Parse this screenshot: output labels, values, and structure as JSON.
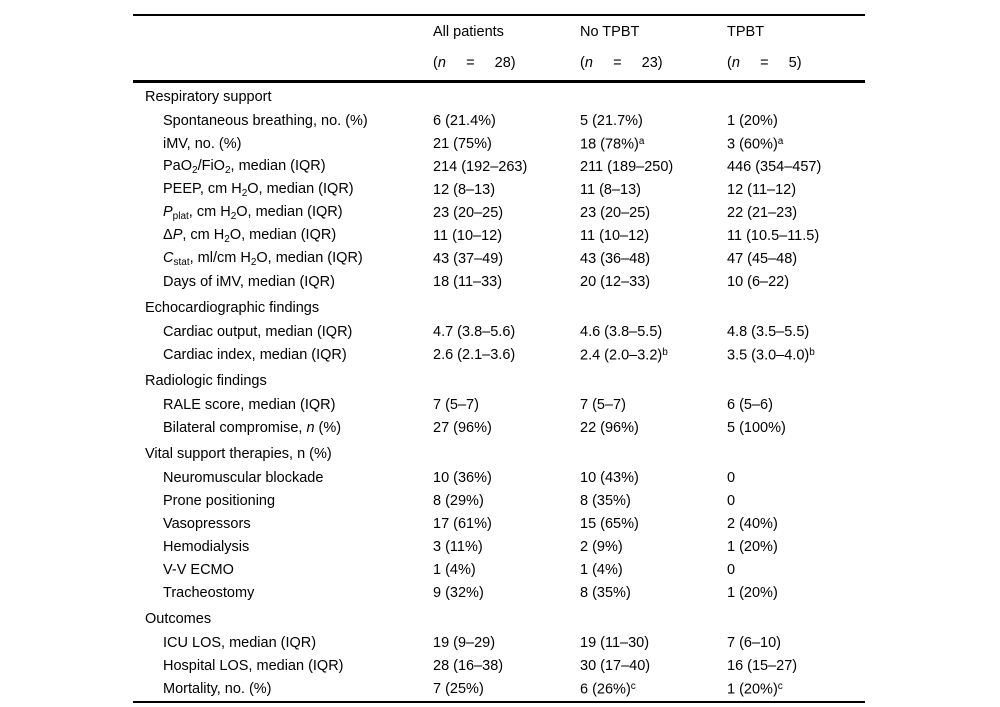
{
  "page": {
    "background": "#ffffff",
    "text_color": "#000000",
    "rule_color": "#000000"
  },
  "table": {
    "header": {
      "columns": [
        {
          "line1": [],
          "line2": []
        },
        {
          "line1": [
            {
              "t": "All patients"
            }
          ],
          "line2": [
            {
              "t": "("
            },
            {
              "t": "n",
              "f": "i"
            },
            {
              "t": "     =     28)"
            }
          ]
        },
        {
          "line1": [
            {
              "t": "No TPBT"
            }
          ],
          "line2": [
            {
              "t": "("
            },
            {
              "t": "n",
              "f": "i"
            },
            {
              "t": "     =     23)"
            }
          ]
        },
        {
          "line1": [
            {
              "t": "TPBT"
            }
          ],
          "line2": [
            {
              "t": "("
            },
            {
              "t": "n",
              "f": "i"
            },
            {
              "t": "     =     5)"
            }
          ]
        }
      ]
    },
    "sections": [
      {
        "title": [
          {
            "t": "Respiratory support"
          }
        ],
        "rows": [
          {
            "label": [
              {
                "t": "Spontaneous breathing, no. (%)"
              }
            ],
            "cells": [
              [
                {
                  "t": "6 (21.4%)"
                }
              ],
              [
                {
                  "t": "5 (21.7%)"
                }
              ],
              [
                {
                  "t": "1 (20%)"
                }
              ]
            ]
          },
          {
            "label": [
              {
                "t": "iMV, no. (%)"
              }
            ],
            "cells": [
              [
                {
                  "t": "21 (75%)"
                }
              ],
              [
                {
                  "t": "18 (78%)"
                },
                {
                  "t": "a",
                  "f": "sup"
                }
              ],
              [
                {
                  "t": "3 (60%)"
                },
                {
                  "t": "a",
                  "f": "sup"
                }
              ]
            ]
          },
          {
            "label": [
              {
                "t": "PaO"
              },
              {
                "t": "2",
                "f": "sub"
              },
              {
                "t": "/FiO"
              },
              {
                "t": "2",
                "f": "sub"
              },
              {
                "t": ", median (IQR)"
              }
            ],
            "cells": [
              [
                {
                  "t": "214 (192–263)"
                }
              ],
              [
                {
                  "t": "211 (189–250)"
                }
              ],
              [
                {
                  "t": "446 (354–457)"
                }
              ]
            ]
          },
          {
            "label": [
              {
                "t": "PEEP, cm H"
              },
              {
                "t": "2",
                "f": "sub"
              },
              {
                "t": "O, median (IQR)"
              }
            ],
            "cells": [
              [
                {
                  "t": "12 (8–13)"
                }
              ],
              [
                {
                  "t": "11 (8–13)"
                }
              ],
              [
                {
                  "t": "12 (11–12)"
                }
              ]
            ]
          },
          {
            "label": [
              {
                "t": "P",
                "f": "i"
              },
              {
                "t": "plat",
                "f": "sub"
              },
              {
                "t": ", cm H"
              },
              {
                "t": "2",
                "f": "sub"
              },
              {
                "t": "O, median (IQR)"
              }
            ],
            "cells": [
              [
                {
                  "t": "23 (20–25)"
                }
              ],
              [
                {
                  "t": "23 (20–25)"
                }
              ],
              [
                {
                  "t": "22 (21–23)"
                }
              ]
            ]
          },
          {
            "label": [
              {
                "t": "Δ"
              },
              {
                "t": "P",
                "f": "i"
              },
              {
                "t": ", cm H"
              },
              {
                "t": "2",
                "f": "sub"
              },
              {
                "t": "O, median (IQR)"
              }
            ],
            "cells": [
              [
                {
                  "t": "11 (10–12)"
                }
              ],
              [
                {
                  "t": "11 (10–12)"
                }
              ],
              [
                {
                  "t": "11 (10.5–11.5)"
                }
              ]
            ]
          },
          {
            "label": [
              {
                "t": "C",
                "f": "i"
              },
              {
                "t": "stat",
                "f": "sub"
              },
              {
                "t": ", ml/cm H"
              },
              {
                "t": "2",
                "f": "sub"
              },
              {
                "t": "O, median (IQR)"
              }
            ],
            "cells": [
              [
                {
                  "t": "43 (37–49)"
                }
              ],
              [
                {
                  "t": "43 (36–48)"
                }
              ],
              [
                {
                  "t": "47 (45–48)"
                }
              ]
            ]
          },
          {
            "label": [
              {
                "t": "Days of iMV, median (IQR)"
              }
            ],
            "cells": [
              [
                {
                  "t": "18 (11–33)"
                }
              ],
              [
                {
                  "t": "20 (12–33)"
                }
              ],
              [
                {
                  "t": "10 (6–22)"
                }
              ]
            ]
          }
        ]
      },
      {
        "title": [
          {
            "t": "Echocardiographic findings"
          }
        ],
        "rows": [
          {
            "label": [
              {
                "t": "Cardiac output, median (IQR)"
              }
            ],
            "cells": [
              [
                {
                  "t": "4.7 (3.8–5.6)"
                }
              ],
              [
                {
                  "t": "4.6 (3.8–5.5)"
                }
              ],
              [
                {
                  "t": "4.8 (3.5–5.5)"
                }
              ]
            ]
          },
          {
            "label": [
              {
                "t": "Cardiac index, median (IQR)"
              }
            ],
            "cells": [
              [
                {
                  "t": "2.6 (2.1–3.6)"
                }
              ],
              [
                {
                  "t": "2.4 (2.0–3.2)"
                },
                {
                  "t": "b",
                  "f": "sup"
                }
              ],
              [
                {
                  "t": "3.5 (3.0–4.0)"
                },
                {
                  "t": "b",
                  "f": "sup"
                }
              ]
            ]
          }
        ]
      },
      {
        "title": [
          {
            "t": "Radiologic findings"
          }
        ],
        "rows": [
          {
            "label": [
              {
                "t": "RALE score, median (IQR)"
              }
            ],
            "cells": [
              [
                {
                  "t": "7 (5–7)"
                }
              ],
              [
                {
                  "t": "7 (5–7)"
                }
              ],
              [
                {
                  "t": "6 (5–6)"
                }
              ]
            ]
          },
          {
            "label": [
              {
                "t": "Bilateral compromise, "
              },
              {
                "t": "n",
                "f": "i"
              },
              {
                "t": " (%)"
              }
            ],
            "cells": [
              [
                {
                  "t": "27 (96%)"
                }
              ],
              [
                {
                  "t": "22 (96%)"
                }
              ],
              [
                {
                  "t": "5 (100%)"
                }
              ]
            ]
          }
        ]
      },
      {
        "title": [
          {
            "t": "Vital support therapies, n (%)"
          }
        ],
        "rows": [
          {
            "label": [
              {
                "t": "Neuromuscular blockade"
              }
            ],
            "cells": [
              [
                {
                  "t": "10 (36%)"
                }
              ],
              [
                {
                  "t": "10 (43%)"
                }
              ],
              [
                {
                  "t": "0"
                }
              ]
            ]
          },
          {
            "label": [
              {
                "t": "Prone positioning"
              }
            ],
            "cells": [
              [
                {
                  "t": "8 (29%)"
                }
              ],
              [
                {
                  "t": "8 (35%)"
                }
              ],
              [
                {
                  "t": "0"
                }
              ]
            ]
          },
          {
            "label": [
              {
                "t": "Vasopressors"
              }
            ],
            "cells": [
              [
                {
                  "t": "17 (61%)"
                }
              ],
              [
                {
                  "t": "15 (65%)"
                }
              ],
              [
                {
                  "t": "2 (40%)"
                }
              ]
            ]
          },
          {
            "label": [
              {
                "t": "Hemodialysis"
              }
            ],
            "cells": [
              [
                {
                  "t": "3 (11%)"
                }
              ],
              [
                {
                  "t": "2 (9%)"
                }
              ],
              [
                {
                  "t": "1 (20%)"
                }
              ]
            ]
          },
          {
            "label": [
              {
                "t": "V-V ECMO"
              }
            ],
            "cells": [
              [
                {
                  "t": "1 (4%)"
                }
              ],
              [
                {
                  "t": "1 (4%)"
                }
              ],
              [
                {
                  "t": "0"
                }
              ]
            ]
          },
          {
            "label": [
              {
                "t": "Tracheostomy"
              }
            ],
            "cells": [
              [
                {
                  "t": "9 (32%)"
                }
              ],
              [
                {
                  "t": "8 (35%)"
                }
              ],
              [
                {
                  "t": "1 (20%)"
                }
              ]
            ]
          }
        ]
      },
      {
        "title": [
          {
            "t": "Outcomes"
          }
        ],
        "rows": [
          {
            "label": [
              {
                "t": "ICU LOS, median (IQR)"
              }
            ],
            "cells": [
              [
                {
                  "t": "19 (9–29)"
                }
              ],
              [
                {
                  "t": "19 (11–30)"
                }
              ],
              [
                {
                  "t": "7 (6–10)"
                }
              ]
            ]
          },
          {
            "label": [
              {
                "t": "Hospital LOS, median (IQR)"
              }
            ],
            "cells": [
              [
                {
                  "t": "28 (16–38)"
                }
              ],
              [
                {
                  "t": "30 (17–40)"
                }
              ],
              [
                {
                  "t": "16 (15–27)"
                }
              ]
            ]
          },
          {
            "label": [
              {
                "t": "Mortality, no. (%)"
              }
            ],
            "cells": [
              [
                {
                  "t": "7 (25%)"
                }
              ],
              [
                {
                  "t": "6 (26%)"
                },
                {
                  "t": "c",
                  "f": "sup"
                }
              ],
              [
                {
                  "t": "1 (20%)"
                },
                {
                  "t": "c",
                  "f": "sup"
                }
              ]
            ]
          }
        ]
      }
    ]
  }
}
